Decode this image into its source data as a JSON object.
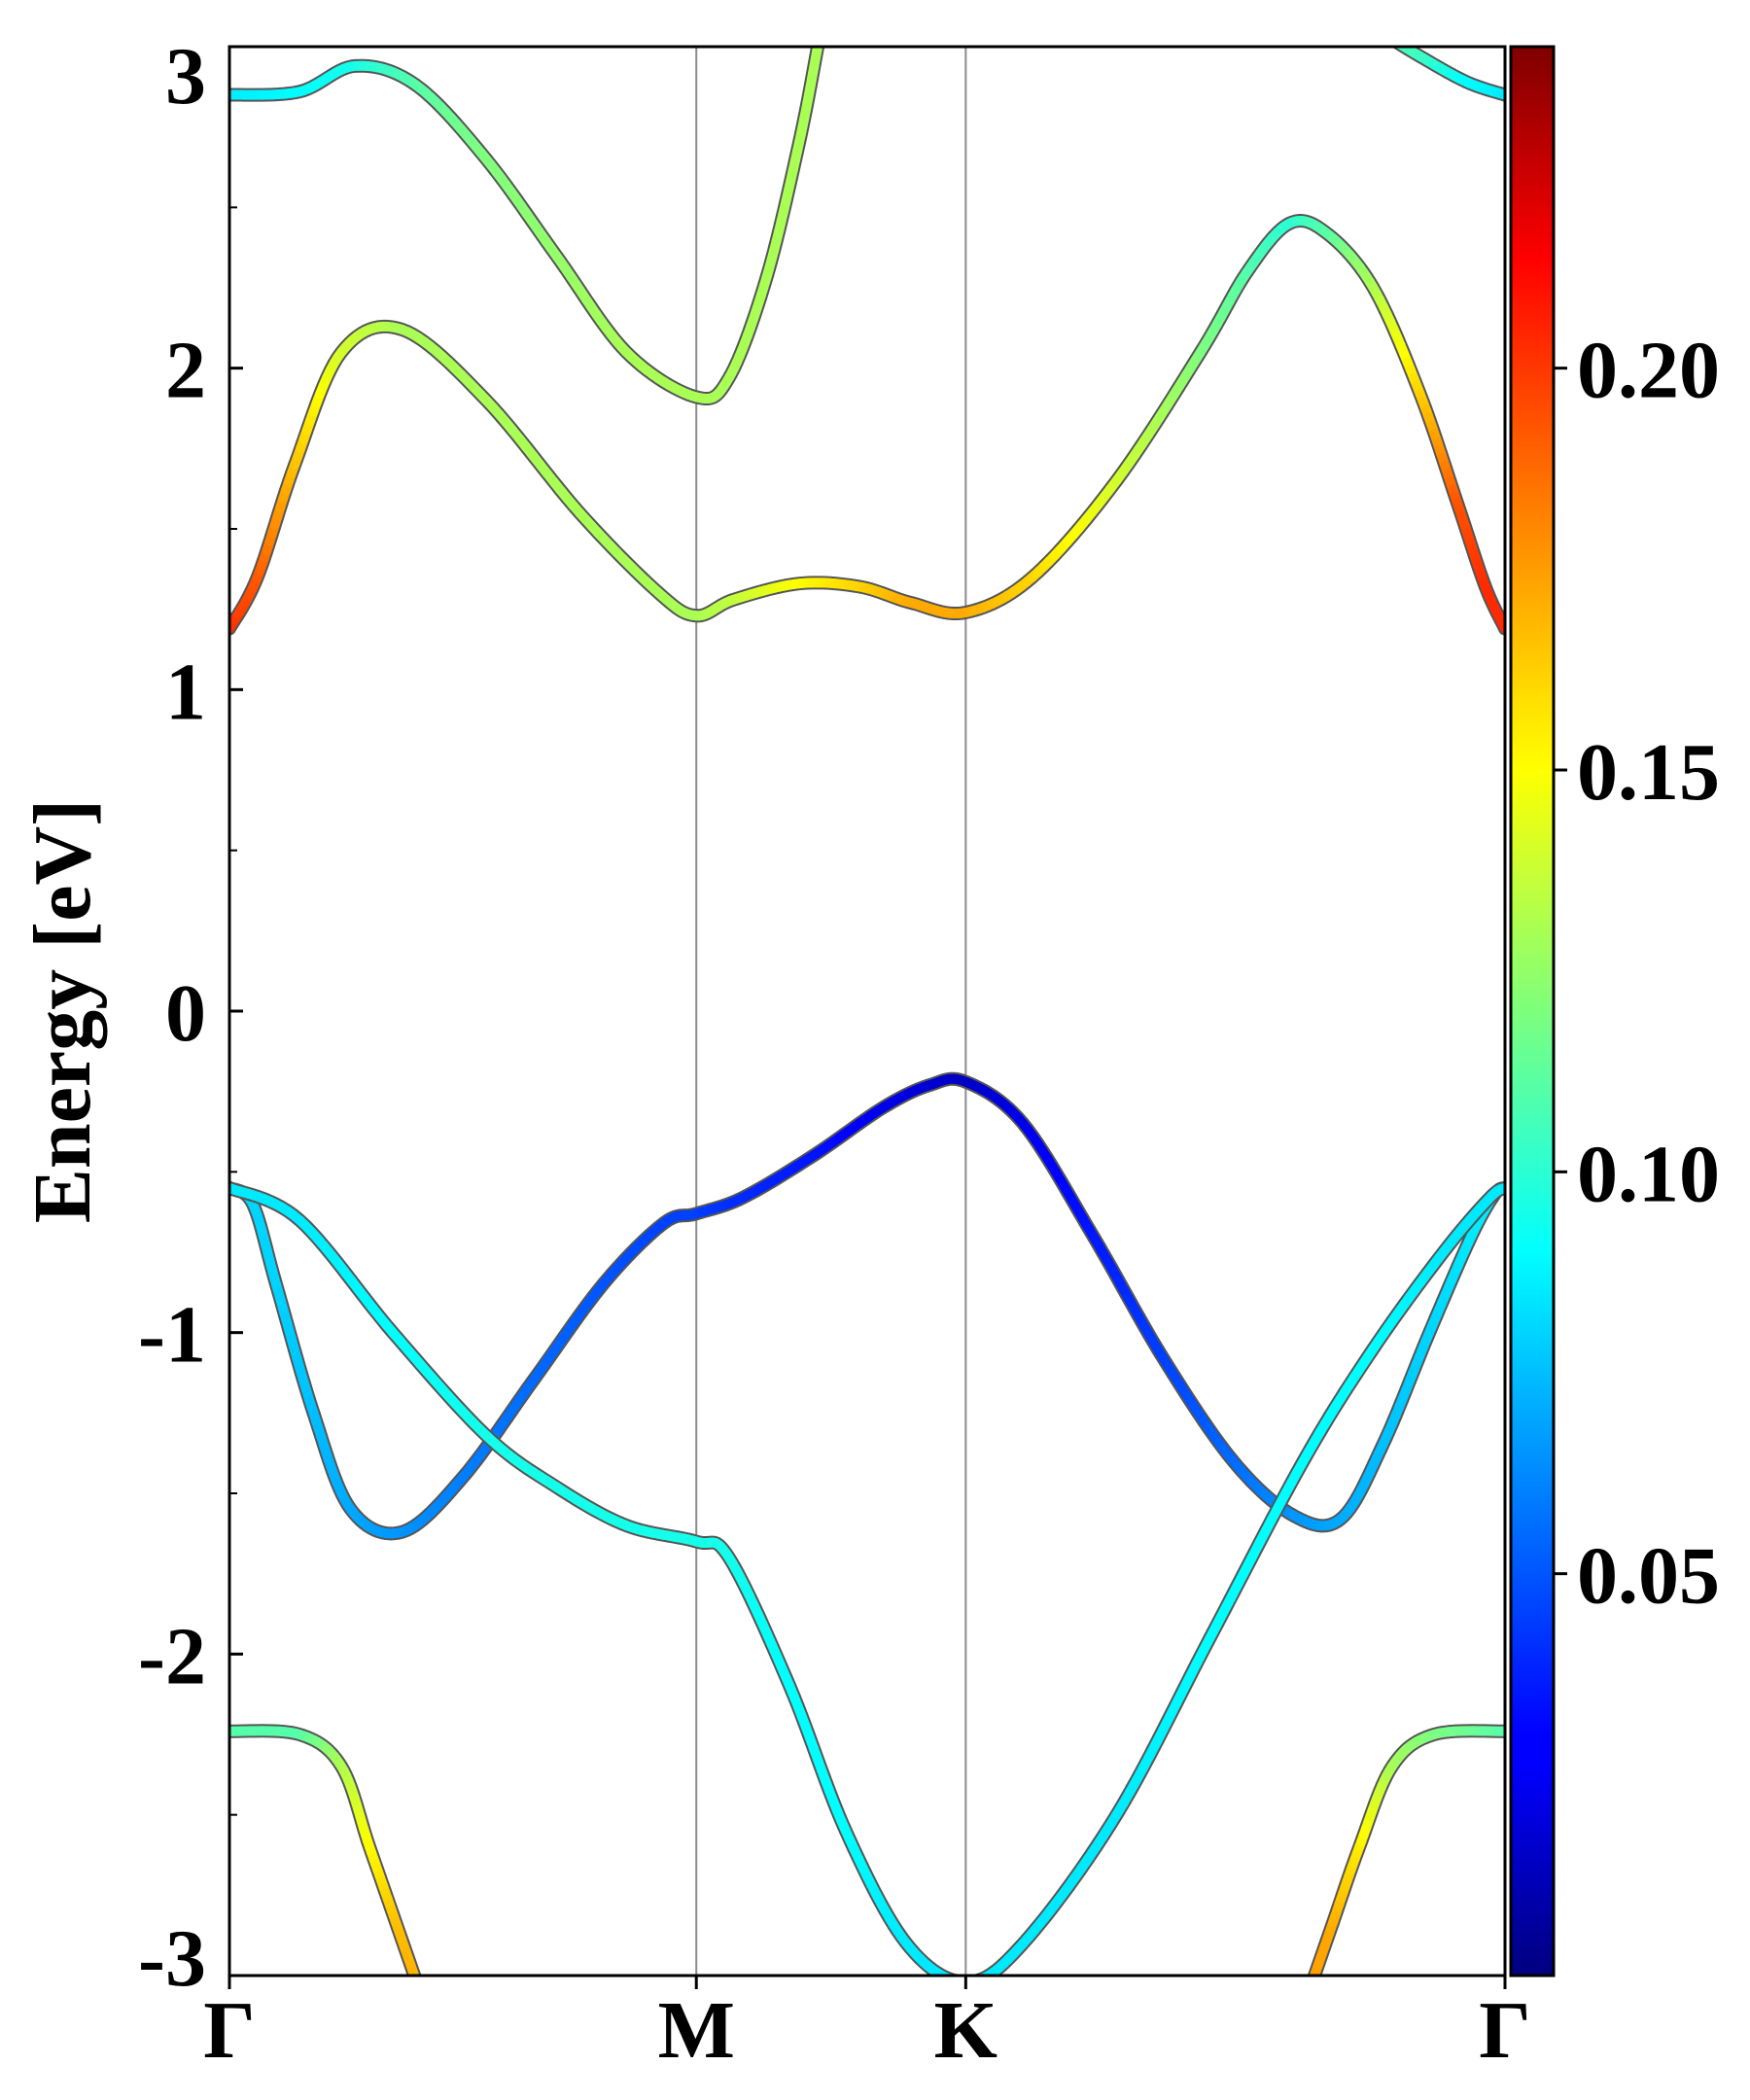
{
  "chart_data": {
    "type": "line",
    "ylabel": "Energy [eV]",
    "xlabel": "",
    "ylim": [
      -3,
      3
    ],
    "y_ticks": [
      "-3",
      "-2",
      "-1",
      "0",
      "1",
      "2",
      "3"
    ],
    "x_ticks": [
      "Γ",
      "M",
      "K",
      "Γ"
    ],
    "k_path_positions": [
      0,
      1,
      1.577,
      2.732
    ],
    "colorbar": {
      "colormap": "jet",
      "range": [
        0.0,
        0.24
      ],
      "tick_labels": [
        "0.05",
        "0.10",
        "0.15",
        "0.20"
      ],
      "tick_values": [
        0.05,
        0.1,
        0.15,
        0.2
      ]
    },
    "grid": false,
    "series": [
      {
        "points": [
          [
            0,
            2.85,
            0.085
          ],
          [
            0.15,
            2.86,
            0.09
          ],
          [
            0.27,
            2.94,
            0.095
          ],
          [
            0.4,
            2.88,
            0.11
          ],
          [
            0.55,
            2.65,
            0.12
          ],
          [
            0.7,
            2.35,
            0.125
          ],
          [
            0.85,
            2.05,
            0.13
          ],
          [
            1.0,
            1.91,
            0.13
          ],
          [
            1.07,
            1.97,
            0.13
          ],
          [
            1.15,
            2.28,
            0.13
          ],
          [
            1.22,
            2.7,
            0.13
          ],
          [
            1.26,
            3.0,
            0.13
          ]
        ]
      },
      {
        "points": [
          [
            0,
            1.19,
            0.2
          ],
          [
            0.06,
            1.35,
            0.19
          ],
          [
            0.14,
            1.7,
            0.165
          ],
          [
            0.24,
            2.05,
            0.14
          ],
          [
            0.37,
            2.12,
            0.13
          ],
          [
            0.55,
            1.9,
            0.13
          ],
          [
            0.75,
            1.55,
            0.13
          ],
          [
            0.92,
            1.3,
            0.13
          ],
          [
            1.0,
            1.23,
            0.13
          ],
          [
            1.08,
            1.28,
            0.135
          ],
          [
            1.22,
            1.33,
            0.15
          ],
          [
            1.35,
            1.32,
            0.16
          ],
          [
            1.46,
            1.27,
            0.17
          ],
          [
            1.577,
            1.24,
            0.17
          ],
          [
            1.72,
            1.35,
            0.16
          ],
          [
            1.9,
            1.65,
            0.14
          ],
          [
            2.08,
            2.05,
            0.12
          ],
          [
            2.18,
            2.3,
            0.11
          ],
          [
            2.27,
            2.45,
            0.1
          ],
          [
            2.35,
            2.42,
            0.11
          ],
          [
            2.45,
            2.25,
            0.13
          ],
          [
            2.55,
            1.92,
            0.16
          ],
          [
            2.63,
            1.58,
            0.19
          ],
          [
            2.69,
            1.32,
            0.2
          ],
          [
            2.732,
            1.19,
            0.2
          ]
        ]
      },
      {
        "points": [
          [
            0,
            -0.55,
            0.08
          ],
          [
            0.05,
            -0.6,
            0.08
          ],
          [
            0.1,
            -0.85,
            0.08
          ],
          [
            0.18,
            -1.25,
            0.075
          ],
          [
            0.26,
            -1.55,
            0.07
          ],
          [
            0.37,
            -1.62,
            0.065
          ],
          [
            0.5,
            -1.45,
            0.06
          ],
          [
            0.65,
            -1.15,
            0.055
          ],
          [
            0.8,
            -0.85,
            0.05
          ],
          [
            0.93,
            -0.66,
            0.045
          ],
          [
            1.0,
            -0.63,
            0.045
          ],
          [
            1.1,
            -0.58,
            0.04
          ],
          [
            1.25,
            -0.45,
            0.035
          ],
          [
            1.4,
            -0.3,
            0.025
          ],
          [
            1.5,
            -0.23,
            0.02
          ],
          [
            1.577,
            -0.22,
            0.015
          ],
          [
            1.7,
            -0.35,
            0.025
          ],
          [
            1.85,
            -0.7,
            0.035
          ],
          [
            2.0,
            -1.08,
            0.045
          ],
          [
            2.15,
            -1.4,
            0.055
          ],
          [
            2.28,
            -1.57,
            0.065
          ],
          [
            2.38,
            -1.58,
            0.07
          ],
          [
            2.47,
            -1.35,
            0.075
          ],
          [
            2.57,
            -1.0,
            0.08
          ],
          [
            2.66,
            -0.7,
            0.085
          ],
          [
            2.71,
            -0.57,
            0.085
          ],
          [
            2.732,
            -0.55,
            0.085
          ]
        ]
      },
      {
        "points": [
          [
            0,
            -0.55,
            0.085
          ],
          [
            0.15,
            -0.65,
            0.085
          ],
          [
            0.35,
            -1.0,
            0.09
          ],
          [
            0.55,
            -1.32,
            0.095
          ],
          [
            0.7,
            -1.48,
            0.095
          ],
          [
            0.85,
            -1.6,
            0.095
          ],
          [
            1.0,
            -1.65,
            0.095
          ],
          [
            1.07,
            -1.7,
            0.095
          ],
          [
            1.2,
            -2.1,
            0.09
          ],
          [
            1.32,
            -2.55,
            0.09
          ],
          [
            1.45,
            -2.9,
            0.085
          ],
          [
            1.577,
            -3.02,
            0.085
          ],
          [
            1.7,
            -2.9,
            0.085
          ],
          [
            1.9,
            -2.5,
            0.085
          ],
          [
            2.1,
            -1.95,
            0.09
          ],
          [
            2.3,
            -1.4,
            0.09
          ],
          [
            2.45,
            -1.05,
            0.09
          ],
          [
            2.6,
            -0.75,
            0.085
          ],
          [
            2.7,
            -0.58,
            0.085
          ],
          [
            2.732,
            -0.55,
            0.085
          ]
        ]
      },
      {
        "points": [
          [
            0,
            -2.24,
            0.11
          ],
          [
            0.15,
            -2.25,
            0.11
          ],
          [
            0.24,
            -2.35,
            0.13
          ],
          [
            0.3,
            -2.6,
            0.15
          ],
          [
            0.36,
            -2.85,
            0.165
          ],
          [
            0.42,
            -3.1,
            0.17
          ]
        ]
      },
      {
        "points": [
          [
            2.3,
            -3.1,
            0.175
          ],
          [
            2.36,
            -2.85,
            0.17
          ],
          [
            2.42,
            -2.6,
            0.155
          ],
          [
            2.49,
            -2.35,
            0.13
          ],
          [
            2.58,
            -2.25,
            0.12
          ],
          [
            2.732,
            -2.24,
            0.11
          ]
        ]
      },
      {
        "points": [
          [
            2.46,
            3.05,
            0.11
          ],
          [
            2.55,
            2.97,
            0.105
          ],
          [
            2.65,
            2.89,
            0.09
          ],
          [
            2.732,
            2.85,
            0.085
          ]
        ]
      }
    ]
  }
}
